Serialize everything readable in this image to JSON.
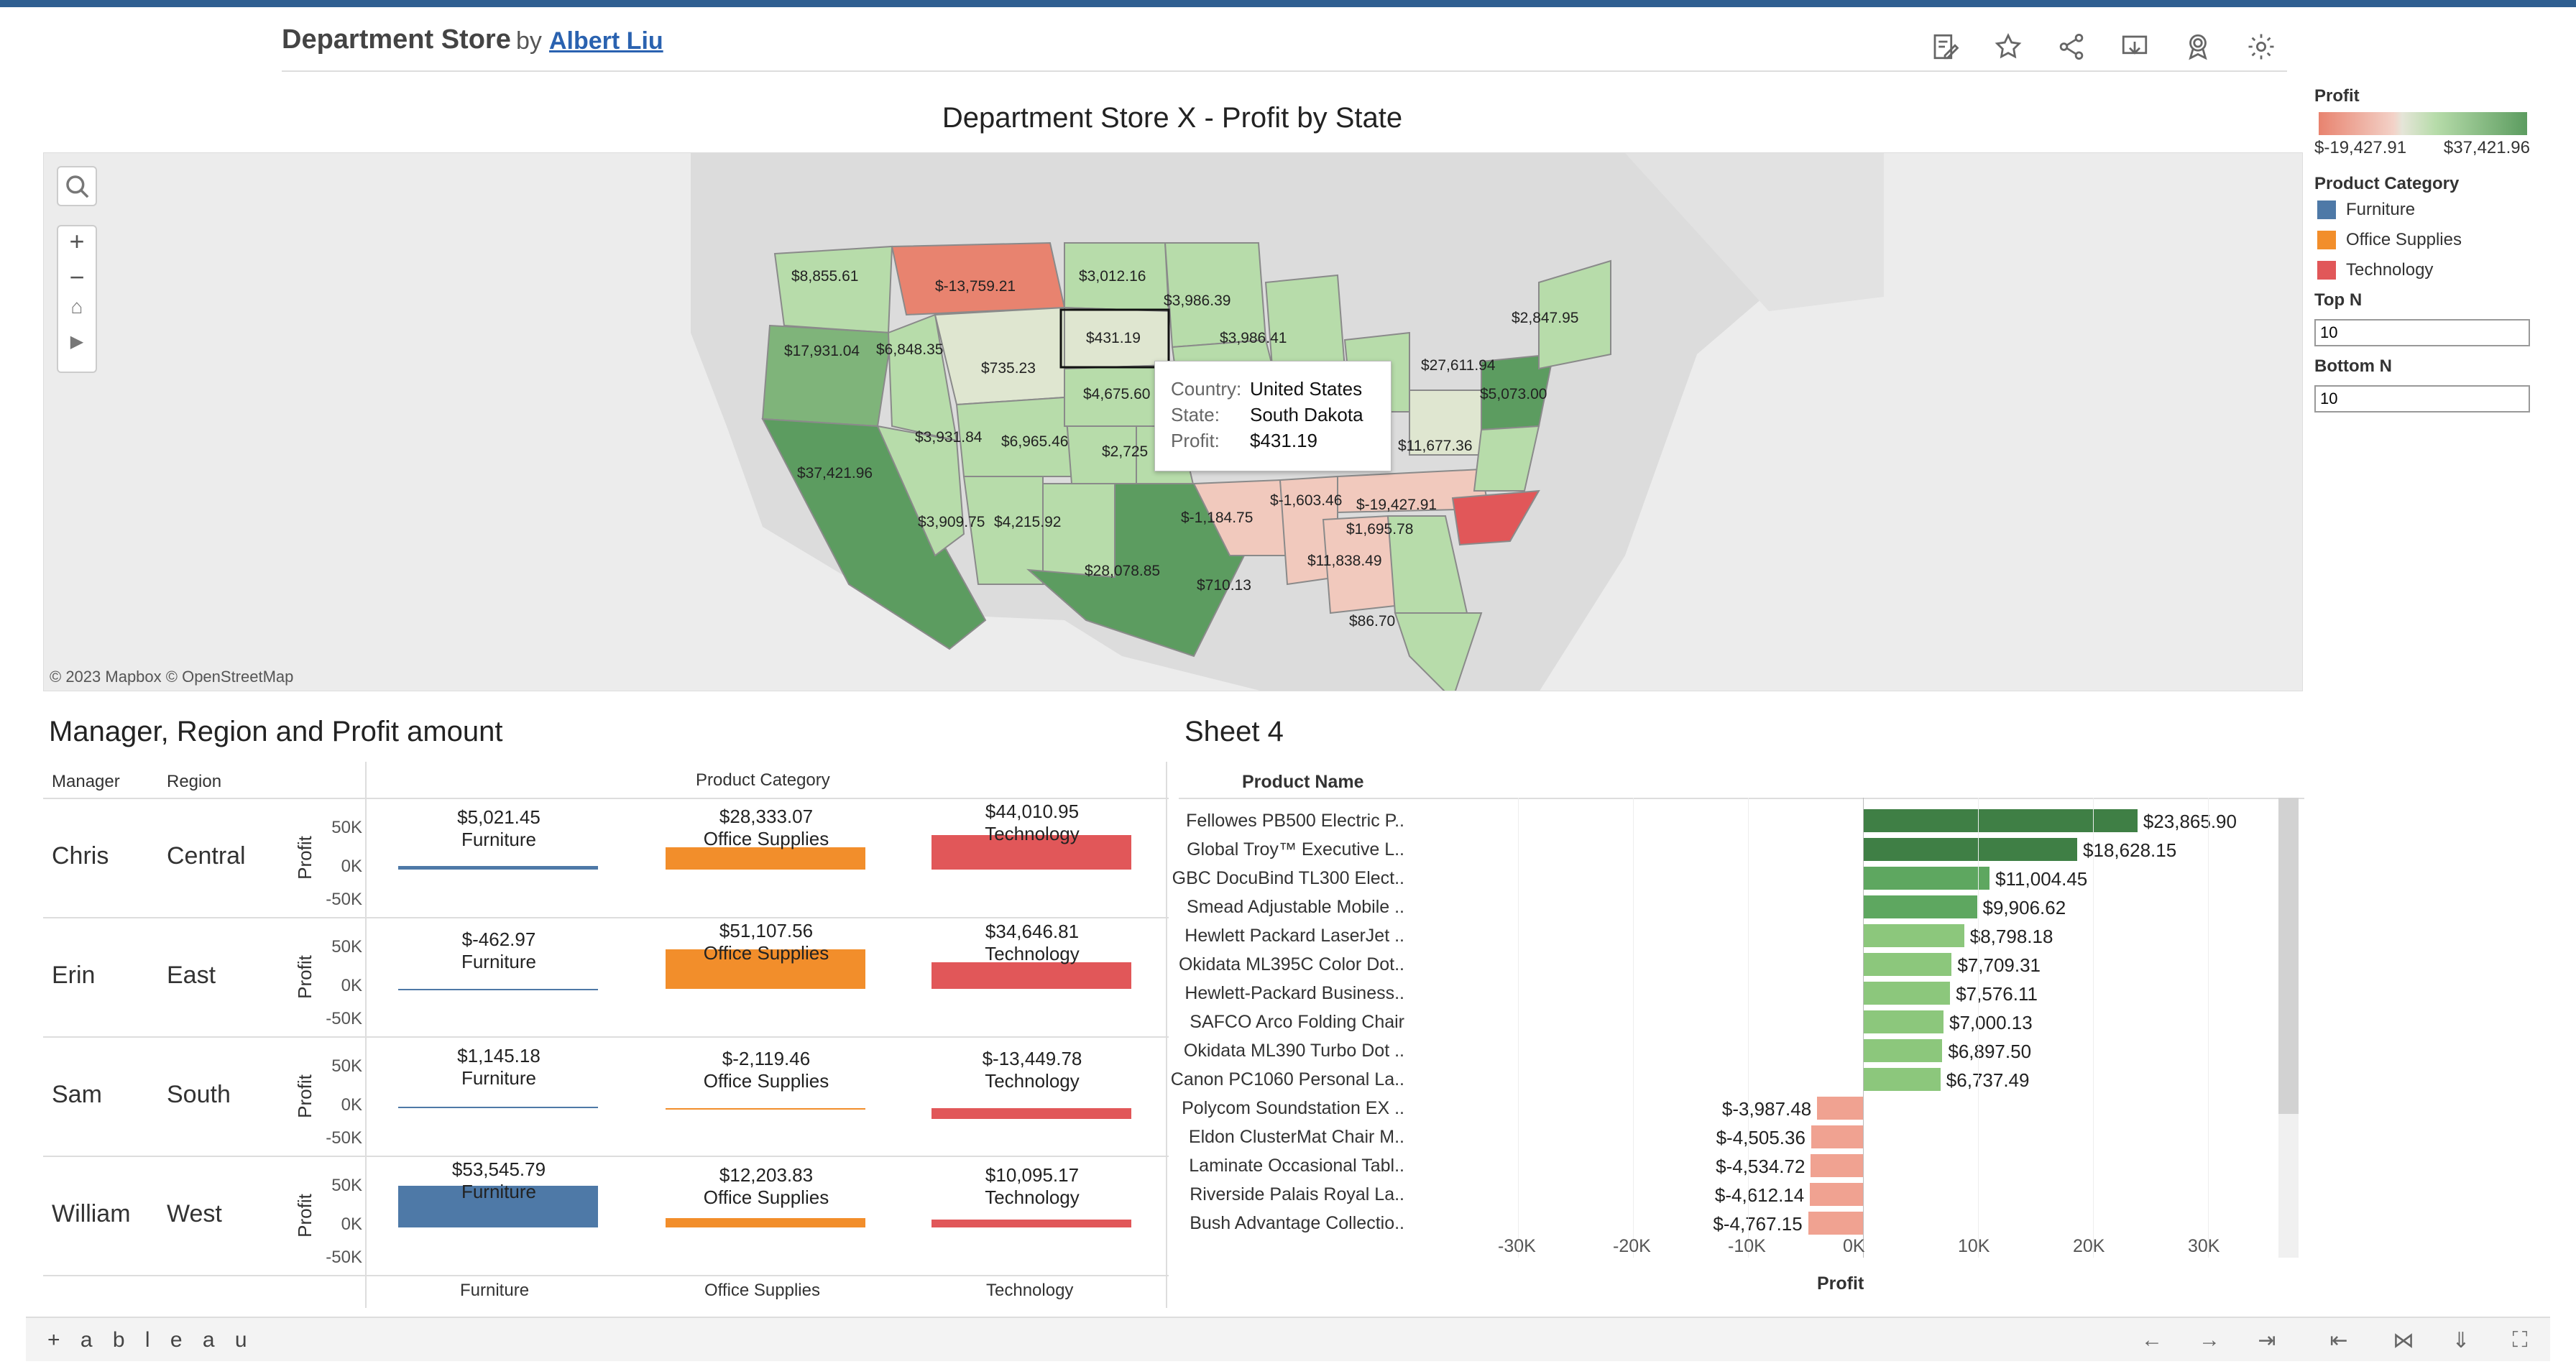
{
  "header": {
    "title": "Department Store",
    "by": "by",
    "author": "Albert Liu",
    "icons": [
      "edit-icon",
      "star-icon",
      "share-icon",
      "download-icon",
      "badge-icon",
      "gear-icon"
    ]
  },
  "map": {
    "title": "Department Store X - Profit by State",
    "credit": "© 2023 Mapbox  © OpenStreetMap",
    "controls": [
      "search-icon",
      "plus-icon",
      "minus-icon",
      "home-icon",
      "play-icon"
    ],
    "labels": [
      "$8,855.61",
      "$-13,759.21",
      "$3,012.16",
      "$3,986.39",
      "$431.19",
      "$3,986.41",
      "$17,931.04",
      "$6,848.35",
      "$735.23",
      "$4,675.60",
      "$27,611.94",
      "$2,847.95",
      "$5,073.00",
      "$3,931.84",
      "$6,965.46",
      "$2,725",
      "$11,677.36",
      "$37,421.96",
      "$3,909.75",
      "$4,215.92",
      "$-1,603.46",
      "$-19,427.91",
      "$-1,184.75",
      "$1,695.78",
      "$28,078.85",
      "$11,838.49",
      "$710.13",
      "$86.70"
    ],
    "tooltip": {
      "country_label": "Country:",
      "country": "United States",
      "state_label": "State:",
      "state": "South Dakota",
      "profit_label": "Profit:",
      "profit": "$431.19"
    }
  },
  "legend": {
    "profit_title": "Profit",
    "profit_min": "$-19,427.91",
    "profit_max": "$37,421.96",
    "category_title": "Product Category",
    "categories": [
      {
        "name": "Furniture",
        "color": "#4e79a7"
      },
      {
        "name": "Office Supplies",
        "color": "#f28e2b"
      },
      {
        "name": "Technology",
        "color": "#e15759"
      }
    ],
    "top_n_label": "Top N",
    "top_n_value": "10",
    "bottom_n_label": "Bottom N",
    "bottom_n_value": "10"
  },
  "manager_section": {
    "title": "Manager, Region and Profit amount",
    "col_manager": "Manager",
    "col_region": "Region",
    "col_category": "Product Category",
    "profit_label": "Profit",
    "ticks": [
      "50K",
      "0K",
      "-50K"
    ],
    "x_labels": [
      "Furniture",
      "Office Supplies",
      "Technology"
    ],
    "rows": [
      {
        "manager": "Chris",
        "region": "Central",
        "values": [
          "$5,021.45",
          "$28,333.07",
          "$44,010.95"
        ],
        "nums": [
          5021.45,
          28333.07,
          44010.95
        ]
      },
      {
        "manager": "Erin",
        "region": "East",
        "values": [
          "$-462.97",
          "$51,107.56",
          "$34,646.81"
        ],
        "nums": [
          -462.97,
          51107.56,
          34646.81
        ]
      },
      {
        "manager": "Sam",
        "region": "South",
        "values": [
          "$1,145.18",
          "$-2,119.46",
          "$-13,449.78"
        ],
        "nums": [
          1145.18,
          -2119.46,
          -13449.78
        ]
      },
      {
        "manager": "William",
        "region": "West",
        "values": [
          "$53,545.79",
          "$12,203.83",
          "$10,095.17"
        ],
        "nums": [
          53545.79,
          12203.83,
          10095.17
        ]
      }
    ]
  },
  "sheet4": {
    "title": "Sheet 4",
    "column_header": "Product Name",
    "axis_title": "Profit",
    "ticks": [
      "-30K",
      "-20K",
      "-10K",
      "0K",
      "10K",
      "20K",
      "30K"
    ]
  },
  "chart_data": {
    "type": "bar",
    "orientation": "horizontal",
    "categories": [
      "Fellowes PB500 Electric P..",
      "Global Troy™ Executive L..",
      "GBC DocuBind TL300 Elect..",
      "Smead Adjustable Mobile ..",
      "Hewlett Packard LaserJet ..",
      "Okidata ML395C Color Dot..",
      "Hewlett-Packard Business..",
      "SAFCO Arco Folding Chair",
      "Okidata ML390 Turbo Dot ..",
      "Canon PC1060 Personal La..",
      "Polycom Soundstation EX ..",
      "Eldon ClusterMat Chair M..",
      "Laminate Occasional Tabl..",
      "Riverside Palais Royal La..",
      "Bush Advantage Collectio.."
    ],
    "values": [
      23865.9,
      18628.15,
      11004.45,
      9906.62,
      8798.18,
      7709.31,
      7576.11,
      7000.13,
      6897.5,
      6737.49,
      -3987.48,
      -4505.36,
      -4534.72,
      -4612.14,
      -4767.15
    ],
    "value_labels": [
      "$23,865.90",
      "$18,628.15",
      "$11,004.45",
      "$9,906.62",
      "$8,798.18",
      "$7,709.31",
      "$7,576.11",
      "$7,000.13",
      "$6,897.50",
      "$6,737.49",
      "$-3,987.48",
      "$-4,505.36",
      "$-4,534.72",
      "$-4,612.14",
      "$-4,767.15"
    ],
    "xlabel": "Profit",
    "ylabel": "Product Name",
    "xlim": [
      -30000,
      38000
    ]
  },
  "footer": {
    "logo": "+ a b l e a u"
  }
}
